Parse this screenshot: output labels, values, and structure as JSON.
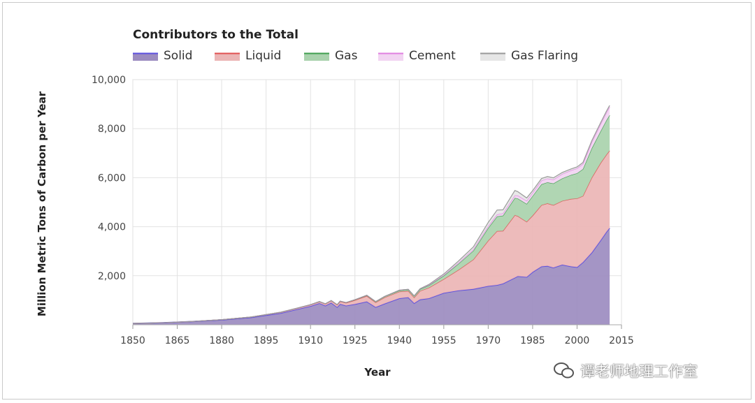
{
  "chart_data": {
    "type": "area",
    "stacked": true,
    "legend_title": "Contributors to the Total",
    "xlabel": "Year",
    "ylabel": "Million Metric Tons of Carbon per Year",
    "xlim": [
      1850,
      2015
    ],
    "ylim": [
      0,
      10000
    ],
    "x_ticks": [
      "1850",
      "1865",
      "1880",
      "1895",
      "1910",
      "1925",
      "1940",
      "1955",
      "1970",
      "1985",
      "2000",
      "2015"
    ],
    "y_ticks": [
      "2,000",
      "4,000",
      "6,000",
      "8,000",
      "10,000"
    ],
    "grid": true,
    "legend_position": "top-left",
    "x": [
      1850,
      1860,
      1870,
      1880,
      1890,
      1900,
      1905,
      1910,
      1913,
      1915,
      1917,
      1919,
      1920,
      1922,
      1925,
      1929,
      1932,
      1935,
      1940,
      1943,
      1945,
      1947,
      1950,
      1955,
      1960,
      1965,
      1970,
      1973,
      1975,
      1979,
      1980,
      1983,
      1985,
      1988,
      1990,
      1992,
      1995,
      1998,
      2000,
      2002,
      2005,
      2008,
      2010,
      2011
    ],
    "series": [
      {
        "name": "Solid",
        "color": "#5b4fe0",
        "fill": "#9c8cc0",
        "values": [
          54,
          80,
          130,
          200,
          300,
          480,
          620,
          760,
          880,
          780,
          900,
          720,
          850,
          780,
          840,
          950,
          720,
          860,
          1080,
          1120,
          880,
          1030,
          1080,
          1300,
          1400,
          1460,
          1580,
          1620,
          1680,
          1920,
          1980,
          1950,
          2150,
          2380,
          2400,
          2330,
          2450,
          2380,
          2350,
          2550,
          2950,
          3450,
          3800,
          3950
        ]
      },
      {
        "name": "Liquid",
        "color": "#e05050",
        "fill": "#ebb5b5",
        "values": [
          0,
          1,
          3,
          7,
          15,
          30,
          40,
          55,
          60,
          70,
          80,
          90,
          100,
          110,
          160,
          220,
          190,
          250,
          270,
          260,
          230,
          350,
          430,
          560,
          840,
          1200,
          1850,
          2200,
          2150,
          2550,
          2450,
          2250,
          2300,
          2500,
          2550,
          2550,
          2600,
          2750,
          2800,
          2700,
          3050,
          3150,
          3150,
          3150
        ]
      },
      {
        "name": "Gas",
        "color": "#3f9f4f",
        "fill": "#a9d2ad",
        "values": [
          0,
          0,
          0,
          0,
          1,
          2,
          3,
          5,
          6,
          7,
          8,
          10,
          12,
          14,
          20,
          30,
          30,
          40,
          50,
          55,
          60,
          70,
          95,
          140,
          250,
          360,
          520,
          600,
          620,
          700,
          720,
          730,
          800,
          850,
          860,
          880,
          920,
          980,
          1030,
          1100,
          1200,
          1300,
          1400,
          1450
        ]
      },
      {
        "name": "Cement",
        "color": "#e080e0",
        "fill": "#f2d4f2",
        "values": [
          0,
          0,
          0,
          0,
          0,
          0,
          0,
          0,
          0,
          0,
          0,
          1,
          2,
          2,
          3,
          5,
          5,
          6,
          10,
          12,
          10,
          15,
          20,
          30,
          43,
          60,
          78,
          80,
          90,
          110,
          120,
          125,
          130,
          150,
          157,
          160,
          180,
          190,
          200,
          210,
          250,
          290,
          320,
          340
        ]
      },
      {
        "name": "Gas Flaring",
        "color": "#999999",
        "fill": "#e6e6e6",
        "values": [
          0,
          0,
          0,
          0,
          0,
          0,
          0,
          0,
          0,
          0,
          0,
          0,
          0,
          0,
          0,
          0,
          0,
          0,
          0,
          0,
          0,
          5,
          23,
          40,
          70,
          100,
          150,
          180,
          150,
          200,
          160,
          120,
          90,
          85,
          80,
          75,
          65,
          60,
          60,
          60,
          65,
          60,
          60,
          60
        ]
      }
    ]
  },
  "watermark": {
    "text": "谭老师地理工作室"
  }
}
